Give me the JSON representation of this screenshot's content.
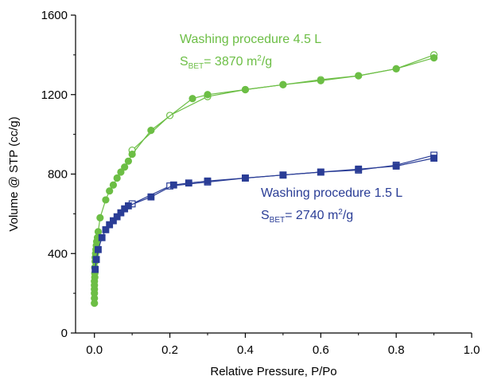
{
  "chart_data": {
    "type": "scatter",
    "xlabel": "Relative Pressure, P/Po",
    "ylabel": "Volume @ STP (cc/g)",
    "xlim": [
      -0.05,
      1.0
    ],
    "ylim": [
      0,
      1600
    ],
    "x_ticks": [
      "0.0",
      "0.2",
      "0.4",
      "0.6",
      "0.8",
      "1.0"
    ],
    "y_ticks": [
      "0",
      "400",
      "800",
      "1200",
      "1600"
    ],
    "grid": false,
    "annotations": [
      {
        "series": "4.5L",
        "line1": "Washing procedure 4.5 L",
        "prefix": "S",
        "subscript": "BET",
        "value": "= 3870 m",
        "sup": "2",
        "unit": "/g",
        "color": "#6cbe45"
      },
      {
        "series": "1.5L",
        "line1": "Washing procedure 1.5 L",
        "prefix": "S",
        "subscript": "BET",
        "value": "= 2740 m",
        "sup": "2",
        "unit": "/g",
        "color": "#2a3d96"
      }
    ],
    "series": [
      {
        "id": "4.5L",
        "color": "#6cbe45",
        "marker": "circle",
        "adsorption": {
          "x": [
            0.0,
            0.0,
            0.0,
            0.0,
            0.0,
            0.0,
            0.001,
            0.001,
            0.001,
            0.002,
            0.002,
            0.003,
            0.004,
            0.005,
            0.006,
            0.008,
            0.01,
            0.015,
            0.03,
            0.04,
            0.05,
            0.06,
            0.07,
            0.08,
            0.09,
            0.1,
            0.15,
            0.26,
            0.3,
            0.4,
            0.5,
            0.6,
            0.7,
            0.8,
            0.9
          ],
          "y": [
            150,
            175,
            200,
            220,
            240,
            260,
            280,
            300,
            330,
            360,
            380,
            400,
            420,
            440,
            460,
            480,
            510,
            580,
            670,
            715,
            745,
            780,
            810,
            835,
            865,
            900,
            1020,
            1180,
            1200,
            1225,
            1250,
            1270,
            1295,
            1330,
            1385
          ]
        },
        "desorption": {
          "x": [
            0.9,
            0.8,
            0.7,
            0.6,
            0.5,
            0.4,
            0.3,
            0.2,
            0.1
          ],
          "y": [
            1400,
            1330,
            1295,
            1275,
            1250,
            1225,
            1190,
            1095,
            920
          ]
        }
      },
      {
        "id": "1.5L",
        "color": "#2a3d96",
        "marker": "square",
        "adsorption": {
          "x": [
            0.002,
            0.005,
            0.01,
            0.02,
            0.03,
            0.04,
            0.05,
            0.06,
            0.07,
            0.08,
            0.09,
            0.15,
            0.21,
            0.25,
            0.3,
            0.4,
            0.5,
            0.6,
            0.7,
            0.8,
            0.9
          ],
          "y": [
            320,
            370,
            420,
            480,
            520,
            545,
            565,
            585,
            605,
            625,
            640,
            685,
            745,
            755,
            765,
            780,
            795,
            810,
            825,
            840,
            880
          ]
        },
        "desorption": {
          "x": [
            0.9,
            0.8,
            0.7,
            0.6,
            0.5,
            0.4,
            0.3,
            0.2,
            0.1
          ],
          "y": [
            895,
            845,
            820,
            810,
            795,
            780,
            760,
            740,
            650
          ]
        }
      }
    ]
  }
}
